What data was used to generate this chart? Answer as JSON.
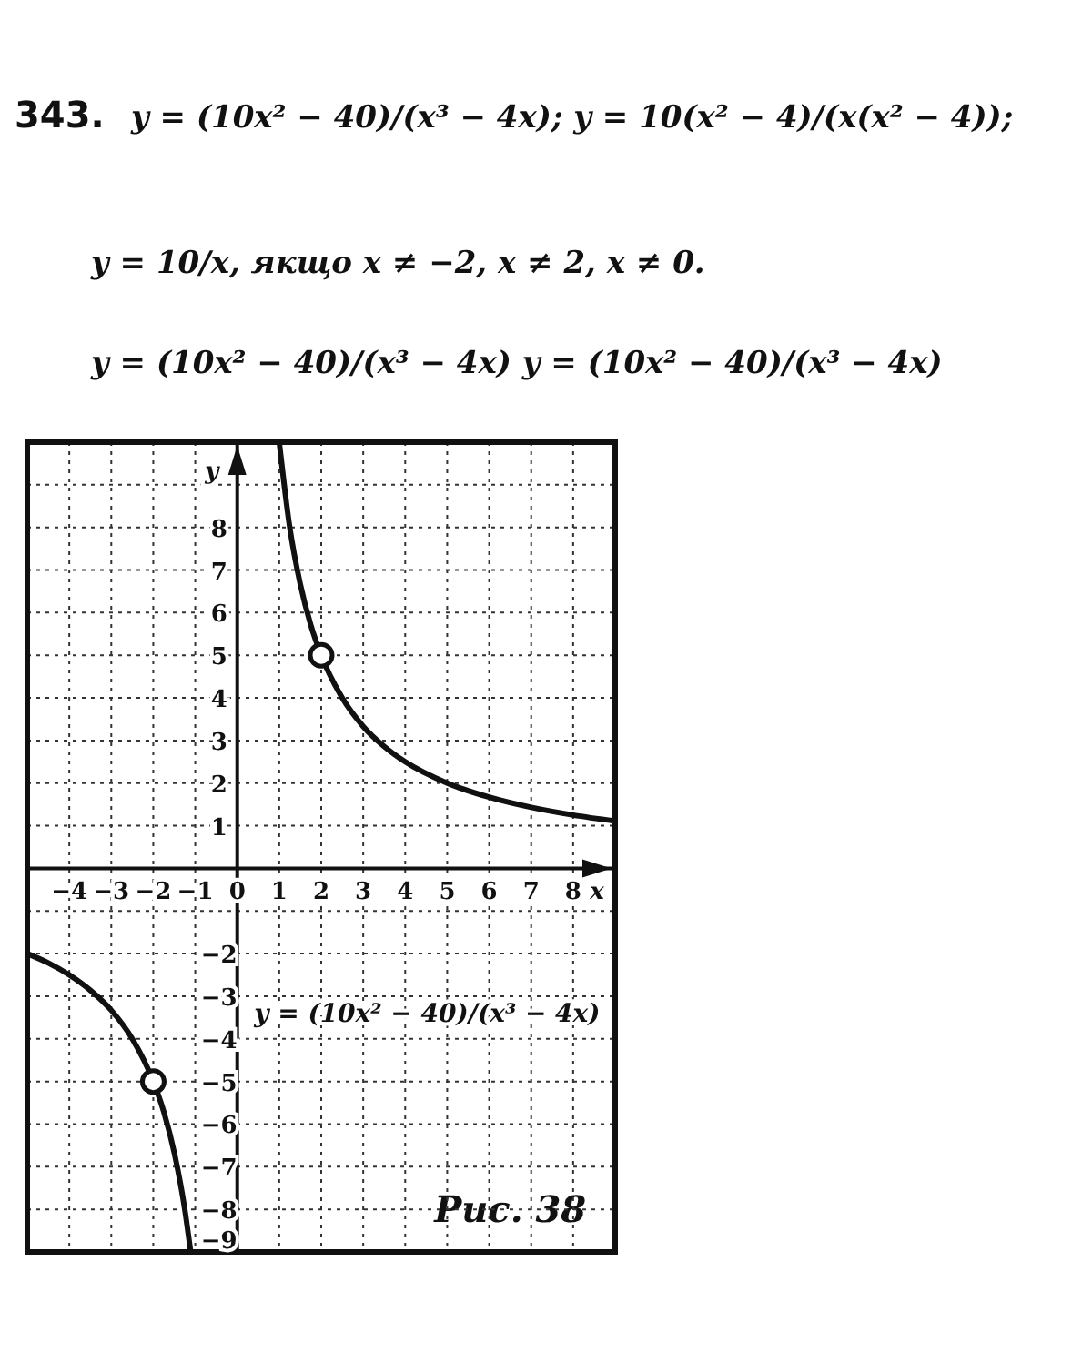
{
  "chart_data": {
    "type": "line",
    "title": "343.",
    "annotations": [
      "y = (10x² − 40)/(x³ − 4x);   y = 10(x² − 4)/(x(x² − 4));",
      "y = 10/x,  якщо  x ≠ −2,  x ≠ 2,  x ≠ 0.",
      "y = (10x² − 40)/(x³ − 4x)     y = (10x² − 40)/(x³ − 4x)",
      "Рис. 38"
    ],
    "xlabel": "x",
    "ylabel": "y",
    "xlim": [
      -5,
      9
    ],
    "ylim": [
      -9,
      10
    ],
    "xticks": [
      -4,
      -3,
      -2,
      -1,
      0,
      1,
      2,
      3,
      4,
      5,
      6,
      7,
      8
    ],
    "yticks": [
      -9,
      -8,
      -7,
      -6,
      -5,
      -4,
      -3,
      -2,
      {
        "value": -1,
        "label": null
      },
      1,
      2,
      3,
      4,
      5,
      6,
      7,
      8,
      {
        "value": 9,
        "label": null
      }
    ],
    "grid": true,
    "series": [
      {
        "name": "y = (10x² − 40)/(x³ − 4x)",
        "color": "#111111",
        "marker": "none",
        "line_style": "solid",
        "x": [
          -5,
          -4.5,
          -4,
          -3.5,
          -3,
          -2.5,
          -2,
          -1.75,
          -1.5,
          -1.25,
          -1.11,
          0,
          1,
          1.25,
          1.5,
          1.75,
          2,
          2.5,
          3,
          3.5,
          4,
          5,
          6,
          7,
          8,
          9
        ],
        "values": [
          -2,
          -2.22,
          -2.5,
          -2.86,
          -3.33,
          -4,
          -5,
          -5.71,
          -6.67,
          -8,
          -9,
          null,
          10,
          8,
          6.67,
          5.71,
          5,
          4,
          3.33,
          2.86,
          2.5,
          2,
          1.67,
          1.43,
          1.25,
          1.11
        ]
      },
      {
        "type": "scatter",
        "color": "#111111",
        "marker": "circle",
        "x": [
          -2,
          2
        ],
        "values": [
          -5,
          5
        ]
      }
    ]
  }
}
